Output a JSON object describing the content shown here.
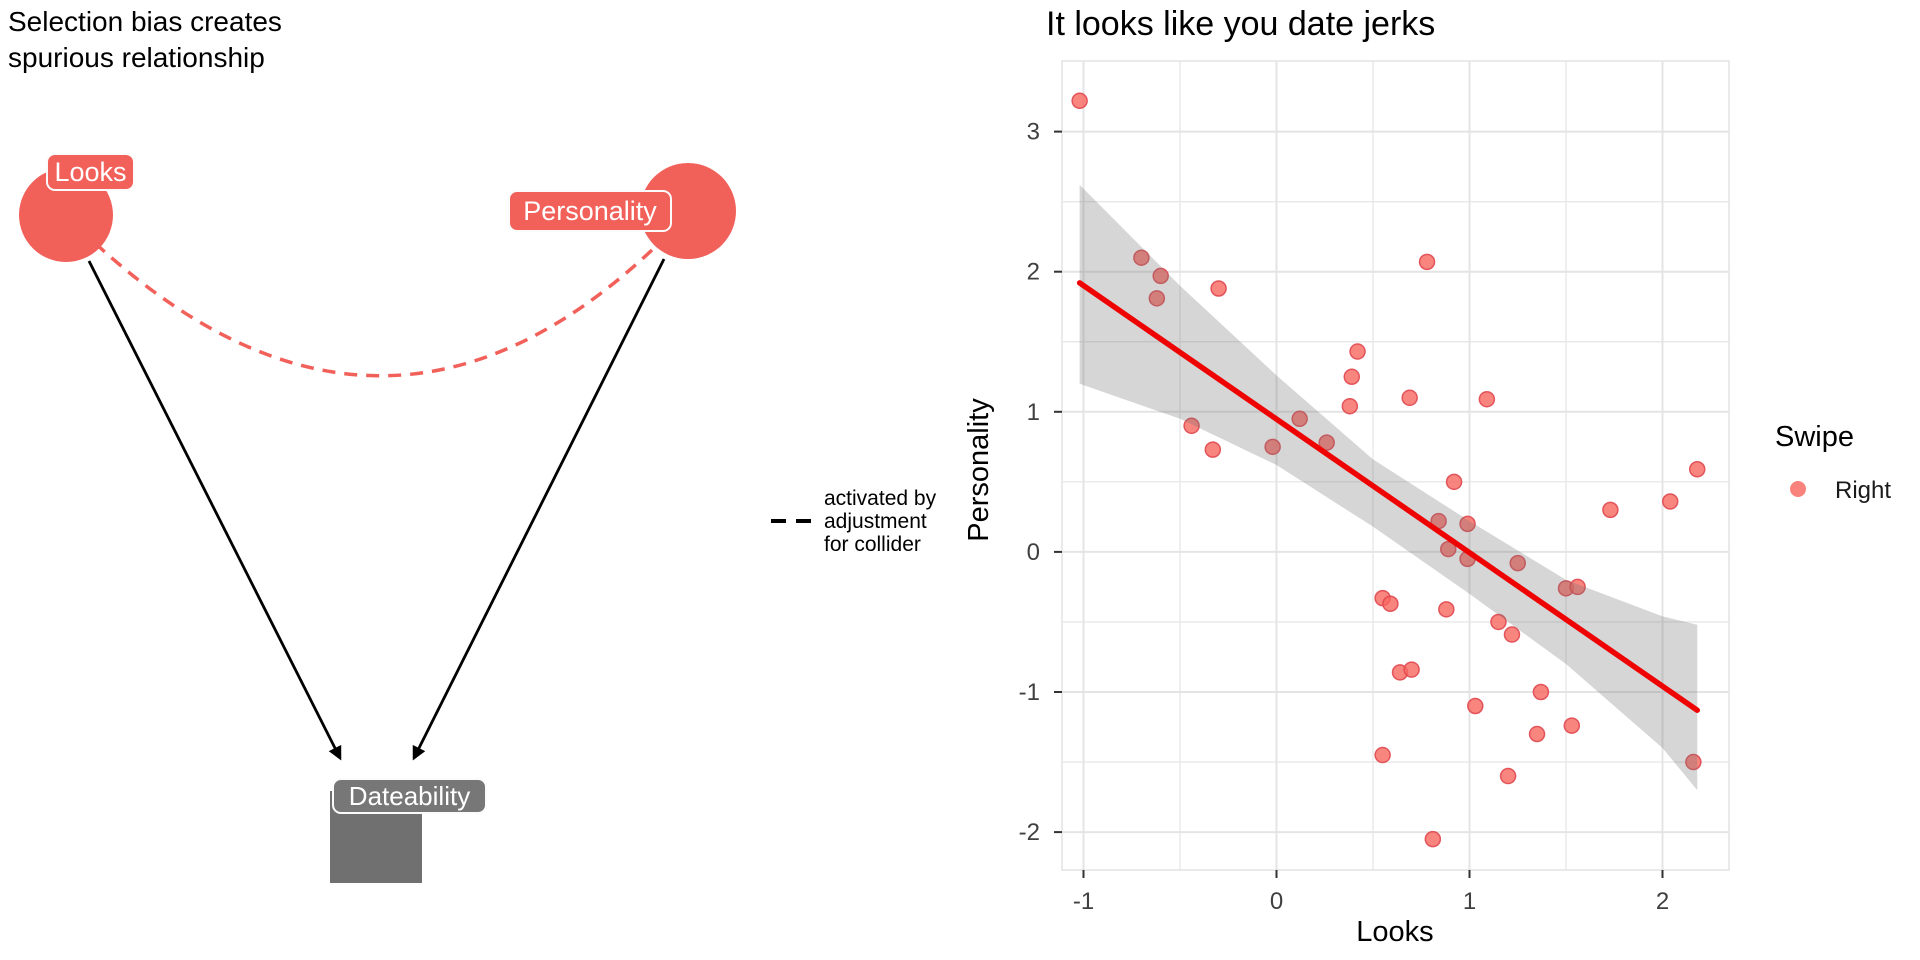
{
  "dag": {
    "title_line1": "Selection bias creates",
    "title_line2": "spurious relationship",
    "accent_color": "#F2605A",
    "collider_color": "#707070",
    "collider_label_color": "#777777",
    "nodes": [
      {
        "id": "looks",
        "label": "Looks",
        "shape": "circle",
        "color": "#F2605A"
      },
      {
        "id": "personality",
        "label": "Personality",
        "shape": "circle",
        "color": "#F2605A"
      },
      {
        "id": "dateability",
        "label": "Dateability",
        "shape": "square",
        "color": "#707070"
      }
    ],
    "edges": [
      {
        "from": "Looks",
        "to": "Dateability",
        "style": "solid-arrow"
      },
      {
        "from": "Personality",
        "to": "Dateability",
        "style": "solid-arrow"
      },
      {
        "from": "Looks",
        "to": "Personality",
        "style": "dashed-curve",
        "meaning": "activated by adjustment for collider"
      }
    ],
    "legend": {
      "line1": "activated by",
      "line2": "adjustment",
      "line3": "for collider",
      "line_style": "dashed",
      "line_color": "#000000"
    }
  },
  "chart_data": {
    "type": "scatter",
    "title": "It looks like you date jerks",
    "xlabel": "Looks",
    "ylabel": "Personality",
    "xlim": [
      -1.11,
      2.34
    ],
    "ylim": [
      -2.27,
      3.5
    ],
    "x_ticks": [
      -1,
      0,
      1,
      2
    ],
    "y_ticks": [
      3,
      2,
      1,
      0,
      -1,
      -2
    ],
    "grid": true,
    "grid_color": "#E4E4E4",
    "legend": {
      "title": "Swipe",
      "position": "right",
      "items": [
        {
          "label": "Right",
          "color": "#F8665F"
        }
      ]
    },
    "point_color": "#F8665F",
    "point_stroke": "#E04850",
    "point_opacity": 0.8,
    "trend_color": "#EE0202",
    "band_color": "rgba(112,112,112,0.29)",
    "points": [
      [
        -1.02,
        3.22
      ],
      [
        -0.7,
        2.1
      ],
      [
        -0.6,
        1.97
      ],
      [
        -0.62,
        1.81
      ],
      [
        -0.3,
        1.88
      ],
      [
        0.78,
        2.07
      ],
      [
        0.42,
        1.43
      ],
      [
        0.39,
        1.25
      ],
      [
        0.69,
        1.1
      ],
      [
        1.09,
        1.09
      ],
      [
        0.38,
        1.04
      ],
      [
        0.12,
        0.95
      ],
      [
        -0.44,
        0.9
      ],
      [
        -0.33,
        0.73
      ],
      [
        -0.02,
        0.75
      ],
      [
        0.26,
        0.78
      ],
      [
        0.92,
        0.5
      ],
      [
        2.18,
        0.59
      ],
      [
        2.04,
        0.36
      ],
      [
        1.73,
        0.3
      ],
      [
        0.84,
        0.22
      ],
      [
        0.99,
        0.2
      ],
      [
        0.89,
        0.02
      ],
      [
        0.99,
        -0.05
      ],
      [
        1.25,
        -0.08
      ],
      [
        1.5,
        -0.26
      ],
      [
        1.56,
        -0.25
      ],
      [
        0.55,
        -0.33
      ],
      [
        0.59,
        -0.37
      ],
      [
        0.88,
        -0.41
      ],
      [
        1.15,
        -0.5
      ],
      [
        1.22,
        -0.59
      ],
      [
        0.64,
        -0.86
      ],
      [
        0.7,
        -0.84
      ],
      [
        1.37,
        -1.0
      ],
      [
        1.03,
        -1.1
      ],
      [
        1.53,
        -1.24
      ],
      [
        1.35,
        -1.3
      ],
      [
        0.55,
        -1.45
      ],
      [
        1.2,
        -1.6
      ],
      [
        2.16,
        -1.5
      ],
      [
        0.81,
        -2.05
      ]
    ],
    "trend": {
      "type": "linear_fit",
      "x_start": -1.02,
      "y_start": 1.92,
      "x_end": 2.18,
      "y_end": -1.13
    },
    "band_upper": [
      [
        -1.02,
        2.62
      ],
      [
        -0.5,
        1.9
      ],
      [
        0.0,
        1.26
      ],
      [
        0.5,
        0.66
      ],
      [
        1.0,
        0.22
      ],
      [
        1.5,
        -0.2
      ],
      [
        2.0,
        -0.46
      ],
      [
        2.18,
        -0.52
      ]
    ],
    "band_lower": [
      [
        -1.02,
        1.2
      ],
      [
        -0.5,
        0.95
      ],
      [
        0.0,
        0.62
      ],
      [
        0.5,
        0.18
      ],
      [
        1.0,
        -0.3
      ],
      [
        1.5,
        -0.8
      ],
      [
        2.0,
        -1.4
      ],
      [
        2.18,
        -1.7
      ]
    ]
  }
}
